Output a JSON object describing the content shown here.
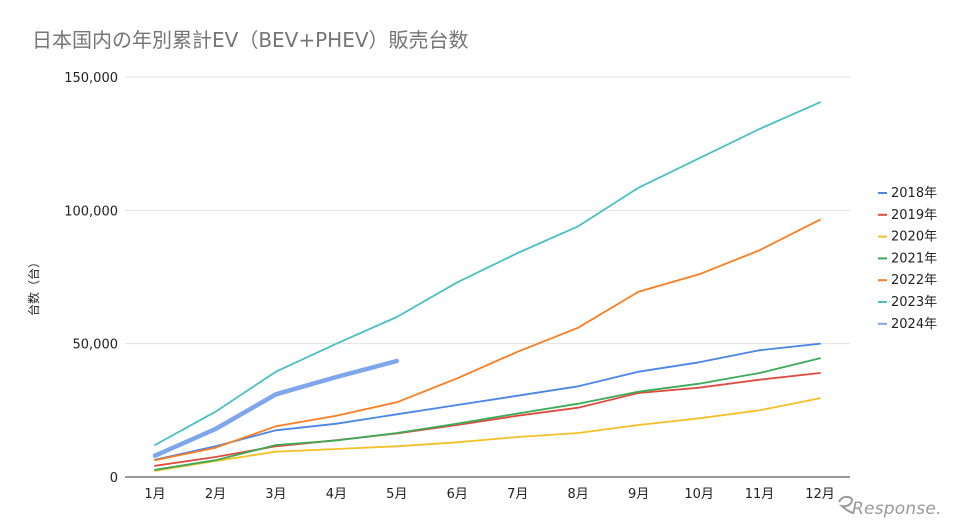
{
  "chart_data": {
    "type": "line",
    "title": "日本国内の年別累計EV（BEV+PHEV）販売台数",
    "xlabel": "",
    "ylabel": "台数（台）",
    "categories": [
      "1月",
      "2月",
      "3月",
      "4月",
      "5月",
      "6月",
      "7月",
      "8月",
      "9月",
      "10月",
      "11月",
      "12月"
    ],
    "ylim": [
      0,
      150000
    ],
    "yticks": [
      0,
      50000,
      100000,
      150000
    ],
    "ytick_labels": [
      "0",
      "50,000",
      "100,000",
      "150,000"
    ],
    "grid": true,
    "legend_position": "right",
    "series": [
      {
        "name": "2018年",
        "color": "#4a86e8",
        "values": [
          6500,
          11500,
          17500,
          20000,
          23500,
          27000,
          30500,
          34000,
          39500,
          43000,
          47500,
          50000
        ]
      },
      {
        "name": "2019年",
        "color": "#e04b3f",
        "values": [
          4200,
          7500,
          11500,
          13800,
          16300,
          19500,
          23000,
          26000,
          31500,
          33500,
          36500,
          39000
        ]
      },
      {
        "name": "2020年",
        "color": "#f6c028",
        "values": [
          2300,
          6000,
          9500,
          10500,
          11500,
          13000,
          15000,
          16500,
          19500,
          22000,
          25000,
          29500
        ]
      },
      {
        "name": "2021年",
        "color": "#3cab56",
        "values": [
          2700,
          6300,
          12000,
          13700,
          16500,
          20000,
          23800,
          27500,
          32000,
          35000,
          39000,
          44500
        ]
      },
      {
        "name": "2022年",
        "color": "#fb7d1f",
        "values": [
          6300,
          11000,
          19000,
          23000,
          28000,
          37000,
          47000,
          56000,
          69500,
          76000,
          85000,
          96500
        ]
      },
      {
        "name": "2023年",
        "color": "#48c0c3",
        "values": [
          12000,
          24500,
          39500,
          50000,
          60000,
          73000,
          84000,
          94000,
          108500,
          119500,
          130500,
          140500
        ]
      },
      {
        "name": "2024年",
        "color": "#7ea6ec",
        "values": [
          8000,
          18000,
          31000,
          37500,
          43500,
          null,
          null,
          null,
          null,
          null,
          null,
          null
        ]
      }
    ]
  },
  "watermark": "Response."
}
